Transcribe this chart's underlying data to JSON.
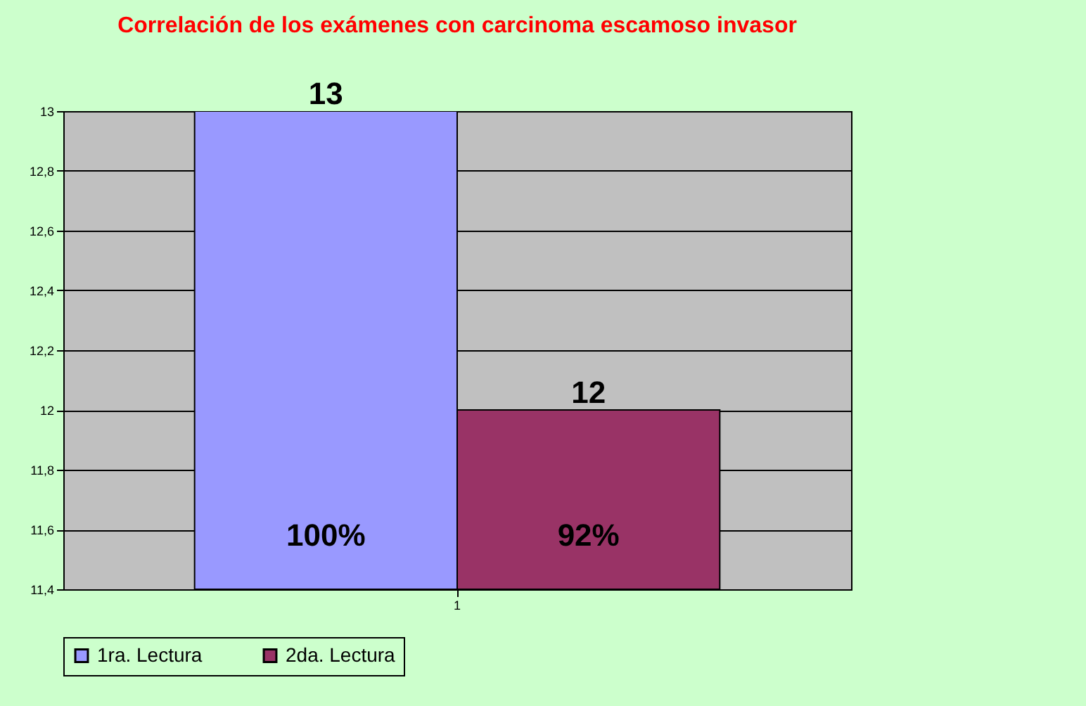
{
  "chart_data": {
    "type": "bar",
    "title": "Correlación de los exámenes con carcinoma escamoso invasor",
    "categories": [
      "1"
    ],
    "series": [
      {
        "name": "1ra. Lectura",
        "color": "#9999ff",
        "values": [
          13
        ],
        "value_labels": [
          "13"
        ]
      },
      {
        "name": "2da. Lectura",
        "color": "#993366",
        "values": [
          12
        ],
        "value_labels": [
          "12"
        ]
      }
    ],
    "ylim": [
      11.4,
      13
    ],
    "yticks": [
      {
        "value": 11.4,
        "label": "11,4"
      },
      {
        "value": 11.6,
        "label": "11,6"
      },
      {
        "value": 11.8,
        "label": "11,8"
      },
      {
        "value": 12,
        "label": "12"
      },
      {
        "value": 12.2,
        "label": "12,2"
      },
      {
        "value": 12.4,
        "label": "12,4"
      },
      {
        "value": 12.6,
        "label": "12,6"
      },
      {
        "value": 12.8,
        "label": "12,8"
      },
      {
        "value": 13,
        "label": "13"
      }
    ],
    "annotations": [
      "100%",
      "92%"
    ],
    "grid": "y",
    "legend": "bottom"
  }
}
